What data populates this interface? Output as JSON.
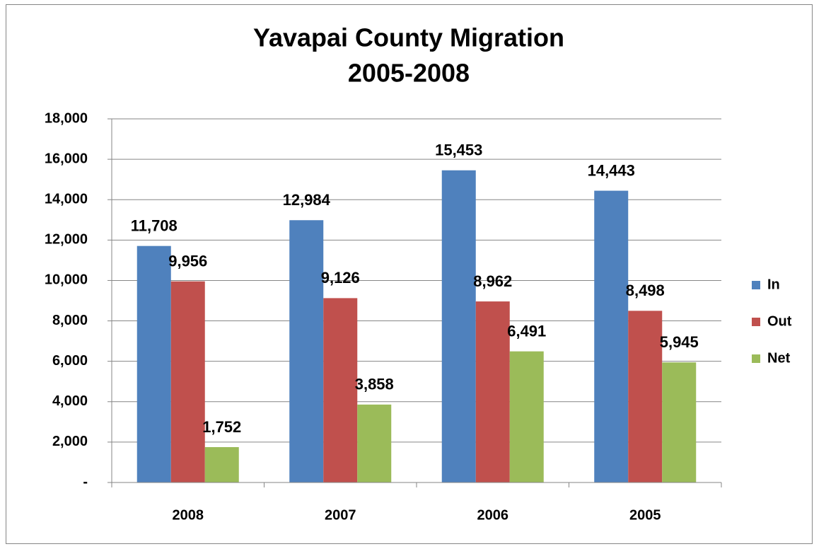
{
  "chart_data": {
    "type": "bar",
    "title": [
      "Yavapai County Migration",
      "2005-2008"
    ],
    "categories": [
      "2008",
      "2007",
      "2006",
      "2005"
    ],
    "series": [
      {
        "name": "In",
        "color": "#4f81bd",
        "values": [
          11708,
          12984,
          15453,
          14443
        ],
        "value_labels": [
          "11,708",
          "12,984",
          "15,453",
          "14,443"
        ]
      },
      {
        "name": "Out",
        "color": "#c0504d",
        "values": [
          9956,
          9126,
          8962,
          8498
        ],
        "value_labels": [
          "9,956",
          "9,126",
          "8,962",
          "8,498"
        ]
      },
      {
        "name": "Net",
        "color": "#9bbb59",
        "values": [
          1752,
          3858,
          6491,
          5945
        ],
        "value_labels": [
          "1,752",
          "3,858",
          "6,491",
          "5,945"
        ]
      }
    ],
    "ylim": [
      0,
      18000
    ],
    "yticks": [
      {
        "value": 0,
        "label": "-"
      },
      {
        "value": 2000,
        "label": "2,000"
      },
      {
        "value": 4000,
        "label": "4,000"
      },
      {
        "value": 6000,
        "label": "6,000"
      },
      {
        "value": 8000,
        "label": "8,000"
      },
      {
        "value": 10000,
        "label": "10,000"
      },
      {
        "value": 12000,
        "label": "12,000"
      },
      {
        "value": 14000,
        "label": "14,000"
      },
      {
        "value": 16000,
        "label": "16,000"
      },
      {
        "value": 18000,
        "label": "18,000"
      }
    ],
    "grid": true,
    "legend": "right"
  }
}
